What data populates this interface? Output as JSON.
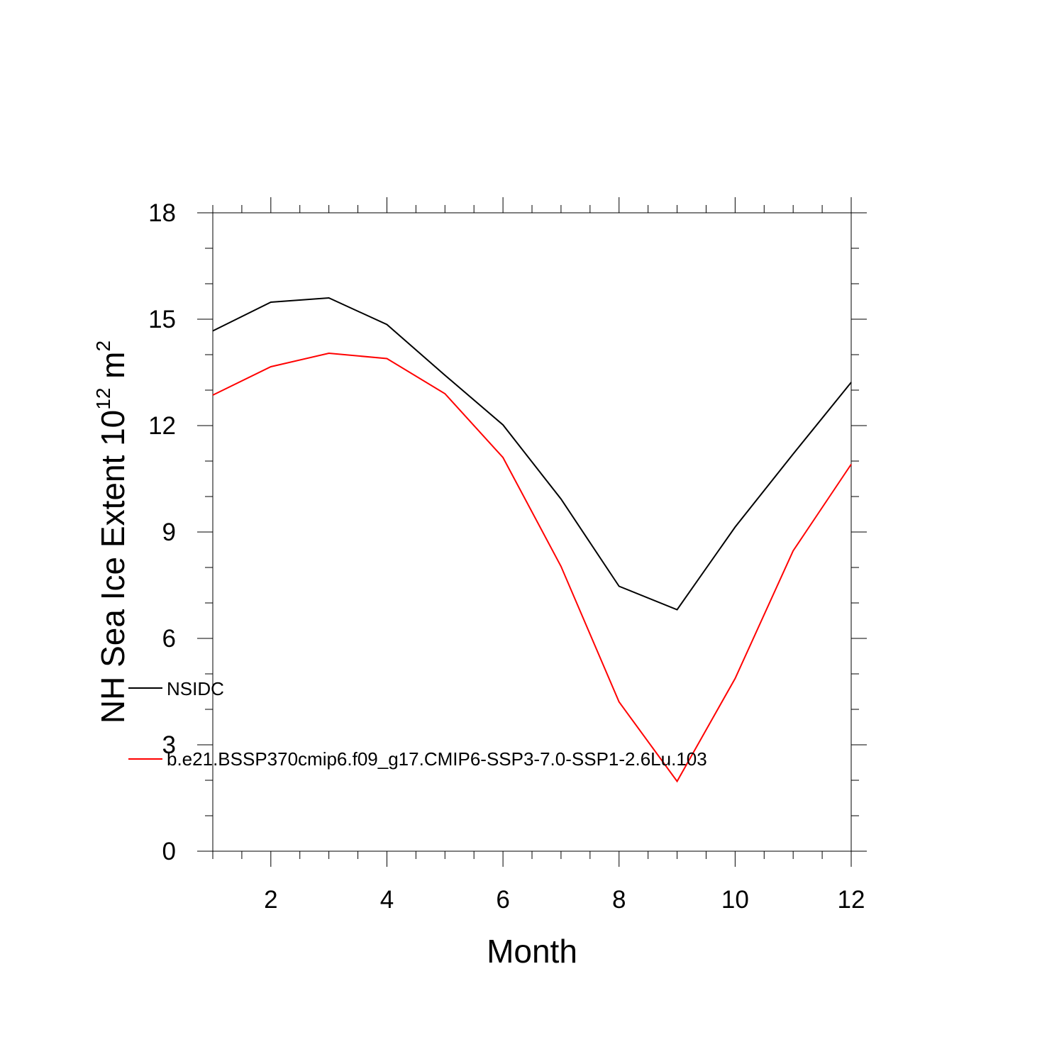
{
  "chart_data": {
    "type": "line",
    "xlabel": "Month",
    "ylabel": {
      "prefix": "NH Sea Ice Extent 10",
      "exponent": "12",
      "unit": " m",
      "unit_exponent": "2"
    },
    "xlim": [
      1,
      12
    ],
    "ylim": [
      0,
      18
    ],
    "xticks": [
      2,
      4,
      6,
      8,
      10,
      12
    ],
    "yticks": [
      0,
      3,
      6,
      9,
      12,
      15,
      18
    ],
    "x": [
      1,
      2,
      3,
      4,
      5,
      6,
      7,
      8,
      9,
      10,
      11,
      12
    ],
    "grid": false,
    "legend_placement": "lower-left inside",
    "series": [
      {
        "name": "NSIDC",
        "color": "#000000",
        "values": [
          14.67,
          15.48,
          15.6,
          14.85,
          13.42,
          12.02,
          9.93,
          7.47,
          6.81,
          9.14,
          11.2,
          13.22
        ]
      },
      {
        "name": "b.e21.BSSP370cmip6.f09_g17.CMIP6-SSP3-7.0-SSP1-2.6Lu.103",
        "color": "#ff0000",
        "values": [
          12.86,
          13.66,
          14.04,
          13.89,
          12.9,
          11.1,
          8.03,
          4.21,
          1.97,
          4.87,
          8.47,
          10.91
        ]
      }
    ]
  }
}
